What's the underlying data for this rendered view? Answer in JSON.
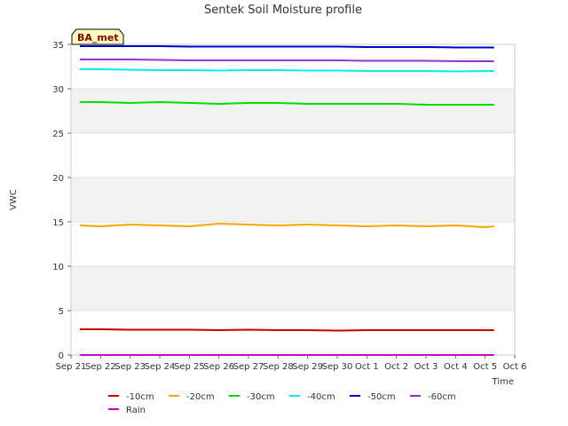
{
  "chart_data": {
    "type": "line",
    "title": "Sentek Soil Moisture profile",
    "xlabel": "Time",
    "ylabel": "VWC",
    "badge": "BA_met",
    "ylim": [
      0,
      35
    ],
    "yticks": [
      0,
      5,
      10,
      15,
      20,
      25,
      30,
      35
    ],
    "xlim": [
      0,
      15
    ],
    "xtick_labels": [
      "Sep 21",
      "Sep 22",
      "Sep 23",
      "Sep 24",
      "Sep 25",
      "Sep 26",
      "Sep 27",
      "Sep 28",
      "Sep 29",
      "Sep 30",
      "Oct 1",
      "Oct 2",
      "Oct 3",
      "Oct 4",
      "Oct 5",
      "Oct 6"
    ],
    "x": [
      0.3,
      1,
      2,
      3,
      4,
      5,
      6,
      7,
      8,
      9,
      10,
      11,
      12,
      13,
      14,
      14.3
    ],
    "series": [
      {
        "name": "-10cm",
        "color": "#cc0000",
        "values": [
          2.9,
          2.9,
          2.85,
          2.85,
          2.85,
          2.8,
          2.85,
          2.8,
          2.8,
          2.75,
          2.8,
          2.8,
          2.8,
          2.8,
          2.8,
          2.8
        ]
      },
      {
        "name": "-20cm",
        "color": "#ffa500",
        "values": [
          14.6,
          14.5,
          14.7,
          14.6,
          14.5,
          14.8,
          14.7,
          14.6,
          14.7,
          14.6,
          14.5,
          14.6,
          14.5,
          14.6,
          14.4,
          14.5
        ]
      },
      {
        "name": "-30cm",
        "color": "#00dd00",
        "values": [
          28.5,
          28.5,
          28.4,
          28.5,
          28.4,
          28.3,
          28.4,
          28.4,
          28.3,
          28.3,
          28.3,
          28.3,
          28.2,
          28.2,
          28.2,
          28.2
        ]
      },
      {
        "name": "-40cm",
        "color": "#00eeee",
        "values": [
          32.2,
          32.2,
          32.15,
          32.1,
          32.1,
          32.05,
          32.1,
          32.1,
          32.05,
          32.05,
          32.0,
          32.0,
          32.0,
          31.95,
          32.0,
          32.0
        ]
      },
      {
        "name": "-50cm",
        "color": "#0000cc",
        "values": [
          34.8,
          34.8,
          34.8,
          34.8,
          34.75,
          34.75,
          34.75,
          34.75,
          34.75,
          34.75,
          34.7,
          34.7,
          34.7,
          34.65,
          34.65,
          34.65
        ]
      },
      {
        "name": "-60cm",
        "color": "#9932cc",
        "values": [
          33.3,
          33.3,
          33.3,
          33.25,
          33.2,
          33.2,
          33.2,
          33.2,
          33.2,
          33.2,
          33.15,
          33.15,
          33.15,
          33.1,
          33.1,
          33.1
        ]
      },
      {
        "name": "Rain",
        "color": "#cc00cc",
        "values": [
          0,
          0,
          0,
          0,
          0,
          0,
          0,
          0,
          0,
          0,
          0,
          0,
          0,
          0,
          0,
          0
        ]
      }
    ]
  }
}
